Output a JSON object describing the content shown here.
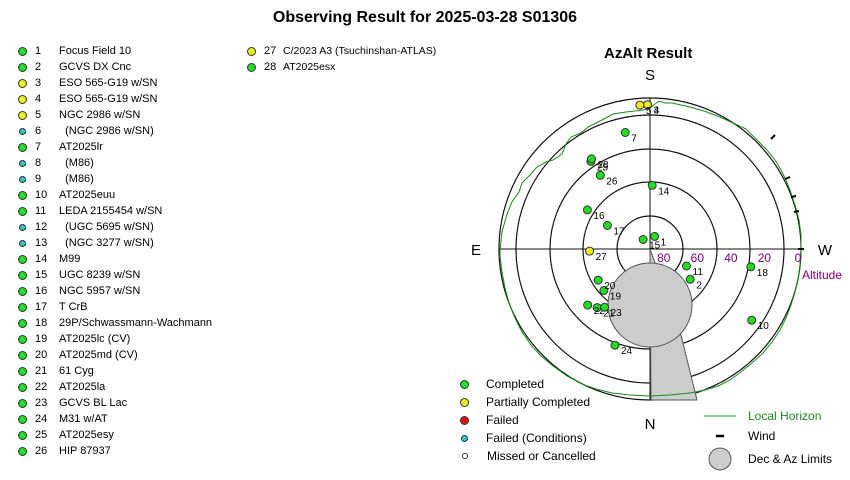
{
  "title": "Observing Result for 2025-03-28 S01306",
  "plot_title": "AzAlt Result",
  "status_colors": {
    "completed": "#22dd22",
    "partial": "#eeee22",
    "failed": "#dd1111",
    "failed_conditions": "#22cccc",
    "missed": "#ffffff"
  },
  "objects": [
    {
      "num": "1",
      "name": "Focus Field 10",
      "status": "completed"
    },
    {
      "num": "2",
      "name": "GCVS DX Cnc",
      "status": "completed"
    },
    {
      "num": "3",
      "name": "ESO 565-G19 w/SN",
      "status": "partial"
    },
    {
      "num": "4",
      "name": "ESO 565-G19 w/SN",
      "status": "partial"
    },
    {
      "num": "5",
      "name": "NGC 2986 w/SN",
      "status": "partial"
    },
    {
      "num": "6",
      "name": "  (NGC 2986 w/SN)",
      "status": "failed_conditions"
    },
    {
      "num": "7",
      "name": "AT2025lr",
      "status": "completed"
    },
    {
      "num": "8",
      "name": "  (M86)",
      "status": "failed_conditions"
    },
    {
      "num": "9",
      "name": "  (M86)",
      "status": "failed_conditions"
    },
    {
      "num": "10",
      "name": "AT2025euu",
      "status": "completed"
    },
    {
      "num": "11",
      "name": "LEDA 2155454 w/SN",
      "status": "completed"
    },
    {
      "num": "12",
      "name": "  (UGC 5695 w/SN)",
      "status": "failed_conditions"
    },
    {
      "num": "13",
      "name": "  (NGC 3277 w/SN)",
      "status": "failed_conditions"
    },
    {
      "num": "14",
      "name": "M99",
      "status": "completed"
    },
    {
      "num": "15",
      "name": "UGC 8239 w/SN",
      "status": "completed"
    },
    {
      "num": "16",
      "name": "NGC 5957 w/SN",
      "status": "completed"
    },
    {
      "num": "17",
      "name": "T CrB",
      "status": "completed"
    },
    {
      "num": "18",
      "name": "29P/Schwassmann-Wachmann",
      "status": "completed"
    },
    {
      "num": "19",
      "name": "AT2025lc (CV)",
      "status": "completed"
    },
    {
      "num": "20",
      "name": "AT2025md (CV)",
      "status": "completed"
    },
    {
      "num": "21",
      "name": "61 Cyg",
      "status": "completed"
    },
    {
      "num": "22",
      "name": "AT2025la",
      "status": "completed"
    },
    {
      "num": "23",
      "name": "GCVS BL Lac",
      "status": "completed"
    },
    {
      "num": "24",
      "name": "M31 w/AT",
      "status": "completed"
    },
    {
      "num": "25",
      "name": "AT2025esy",
      "status": "completed"
    },
    {
      "num": "26",
      "name": "HIP 87937",
      "status": "completed"
    },
    {
      "num": "27",
      "name": "C/2023 A3 (Tsuchinshan-ATLAS)",
      "status": "partial"
    },
    {
      "num": "28",
      "name": "AT2025esx",
      "status": "completed"
    }
  ],
  "plot_points": [
    {
      "num": "1",
      "status": "completed",
      "az": 200,
      "alt": 82
    },
    {
      "num": "2",
      "status": "completed",
      "az": 307,
      "alt": 60
    },
    {
      "num": "3",
      "status": "partial",
      "az": 179,
      "alt": 4
    },
    {
      "num": "4",
      "status": "partial",
      "az": 179,
      "alt": 4
    },
    {
      "num": "5",
      "status": "partial",
      "az": 176,
      "alt": 4
    },
    {
      "num": "7",
      "status": "completed",
      "az": 168,
      "alt": 19
    },
    {
      "num": "10",
      "status": "completed",
      "az": 305,
      "alt": 16
    },
    {
      "num": "11",
      "status": "completed",
      "az": 295,
      "alt": 66
    },
    {
      "num": "14",
      "status": "completed",
      "az": 182,
      "alt": 52
    },
    {
      "num": "15",
      "status": "completed",
      "az": 144,
      "alt": 83
    },
    {
      "num": "16",
      "status": "completed",
      "az": 122,
      "alt": 46
    },
    {
      "num": "17",
      "status": "completed",
      "az": 119,
      "alt": 61
    },
    {
      "num": "18",
      "status": "completed",
      "az": 280,
      "alt": 29
    },
    {
      "num": "19",
      "status": "completed",
      "az": 48,
      "alt": 53
    },
    {
      "num": "20",
      "status": "completed",
      "az": 59,
      "alt": 54
    },
    {
      "num": "21",
      "status": "completed",
      "az": 42,
      "alt": 43
    },
    {
      "num": "22",
      "status": "completed",
      "az": 48,
      "alt": 40
    },
    {
      "num": "23",
      "status": "completed",
      "az": 38,
      "alt": 46
    },
    {
      "num": "24",
      "status": "completed",
      "az": 20,
      "alt": 29
    },
    {
      "num": "25",
      "status": "completed",
      "az": 146,
      "alt": 27
    },
    {
      "num": "26",
      "status": "completed",
      "az": 146,
      "alt": 37
    },
    {
      "num": "27",
      "status": "partial",
      "az": 88,
      "alt": 54
    },
    {
      "num": "28",
      "status": "completed",
      "az": 147,
      "alt": 26
    }
  ],
  "compass": {
    "s": "S",
    "n": "N",
    "e": "E",
    "w": "W"
  },
  "altitude_label": "Altitude",
  "altitude_ticks": [
    "80",
    "60",
    "40",
    "20",
    "0"
  ],
  "legend": {
    "completed": "Completed",
    "partial": "Partially Completed",
    "failed": "Failed",
    "failed_conditions": "Failed (Conditions)",
    "missed": "Missed or Cancelled",
    "local_horizon": "Local Horizon",
    "wind": "Wind",
    "limits": "Dec & Az Limits"
  },
  "colors": {
    "horizon": "#1a8a1a",
    "altitude_label": "#800080",
    "limits_fill": "#cccccc"
  }
}
